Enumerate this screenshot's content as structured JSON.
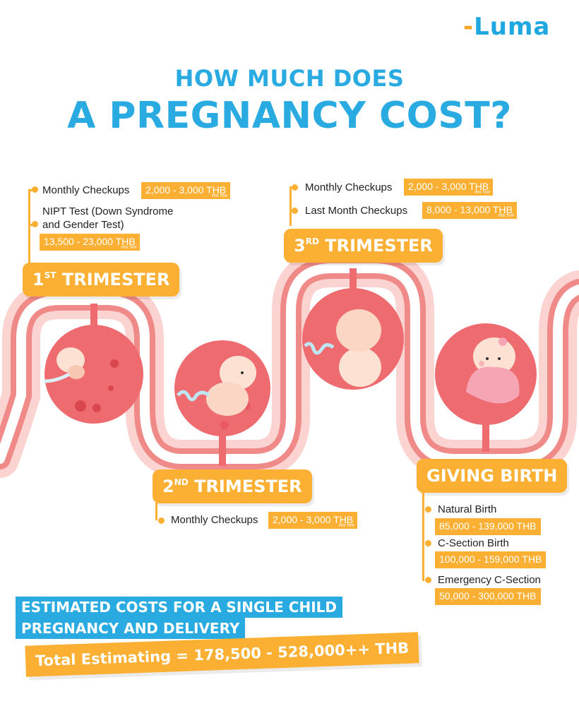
{
  "logo": {
    "text": "Luma"
  },
  "title": {
    "line1": "HOW MUCH DOES",
    "line2": "A PREGNANCY COST?"
  },
  "per_trip": "PER TRIP",
  "first": {
    "name_num": "1",
    "name_sup": "ST",
    "name_rest": " TRIMESTER",
    "items": [
      {
        "label": "Monthly Checkups",
        "price": "2,000 - 3,000 THB"
      },
      {
        "label_l1": "NIPT Test (Down Syndrome",
        "label_l2": "and Gender Test)",
        "price": "13,500 - 23,000 THB"
      }
    ]
  },
  "second": {
    "name_num": "2",
    "name_sup": "ND",
    "name_rest": " TRIMESTER",
    "items": [
      {
        "label": "Monthly Checkups",
        "price": "2,000 - 3,000 THB"
      }
    ]
  },
  "third": {
    "name_num": "3",
    "name_sup": "RD",
    "name_rest": " TRIMESTER",
    "items": [
      {
        "label": "Monthly Checkups",
        "price": "2,000 - 3,000 THB"
      },
      {
        "label": "Last Month Checkups",
        "price": "8,000 - 13,000 THB"
      }
    ]
  },
  "birth": {
    "name": "GIVING BIRTH",
    "items": [
      {
        "label": "Natural Birth",
        "price": "85,000 - 139,000 THB"
      },
      {
        "label": "C-Section Birth",
        "price": "100,000 - 159,000 THB"
      },
      {
        "label": "Emergency C-Section",
        "price": "50,000 - 300,000 THB"
      }
    ]
  },
  "summary": {
    "line1": "ESTIMATED COSTS FOR A SINGLE CHILD",
    "line2": "PREGNANCY AND DELIVERY",
    "total": "Total Estimating = 178,500 - 528,000++ THB"
  },
  "colors": {
    "accent_orange": "#fbb033",
    "title_blue": "#29aae1",
    "womb_red": "#ee6b6f",
    "path_pink": "#f7b3b0"
  }
}
